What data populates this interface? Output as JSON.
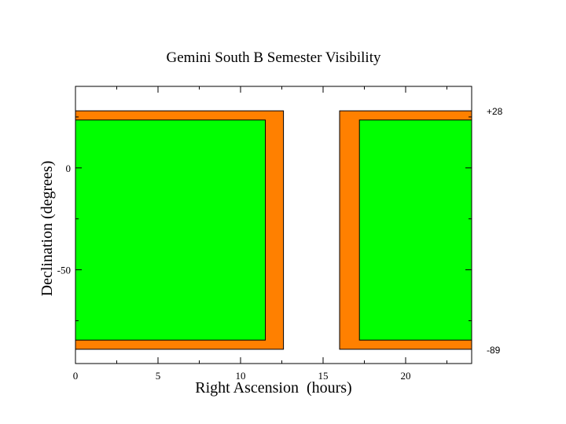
{
  "chart_data": {
    "type": "area",
    "title": "Gemini South B Semester Visibility",
    "xlabel": "Right Ascension  (hours)",
    "ylabel": "Declination (degrees)",
    "xlim": [
      0,
      24
    ],
    "ylim": [
      -96,
      40
    ],
    "x_ticks": [
      0,
      5,
      10,
      15,
      20
    ],
    "y_ticks": [
      0,
      -50
    ],
    "grid": false,
    "regions": [
      {
        "name": "",
        "color": "#ff8000",
        "x": [
          0,
          12.6
        ],
        "y": [
          -89,
          28
        ]
      },
      {
        "name": "",
        "color": "#ff8000",
        "x": [
          16,
          24
        ],
        "y": [
          -89,
          28
        ]
      },
      {
        "name": "",
        "color": "#00ff00",
        "x": [
          0,
          11.5
        ],
        "y": [
          -84.5,
          23.5
        ]
      },
      {
        "name": "",
        "color": "#00ff00",
        "x": [
          17.2,
          24
        ],
        "y": [
          -84.5,
          23.5
        ]
      }
    ],
    "annotations": [
      {
        "text": "+28",
        "y": 28
      },
      {
        "text": "-89",
        "y": -89
      }
    ]
  }
}
